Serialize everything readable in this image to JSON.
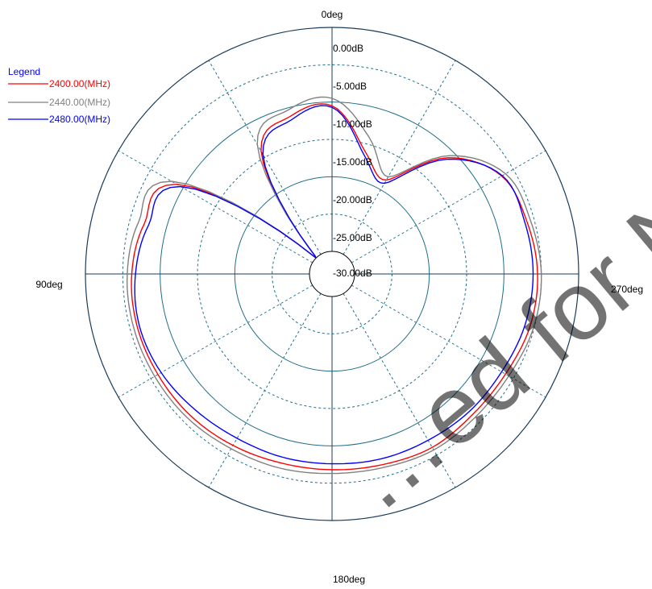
{
  "chart_data": {
    "type": "line",
    "subtype": "polar",
    "title": "",
    "legend": {
      "title": "Legend",
      "placement": "top-left"
    },
    "angle_labels": [
      "0deg",
      "90deg",
      "180deg",
      "270deg"
    ],
    "radial_labels": [
      "0.00dB",
      "-5.00dB",
      "-10.00dB",
      "-15.00dB",
      "-20.00dB",
      "-25.00dB",
      "-30.00dB"
    ],
    "rlim": [
      -35,
      0
    ],
    "angle_direction": "counterclockwise",
    "angle_zero": "top",
    "grid": true,
    "angles_deg": [
      0,
      15,
      30,
      45,
      60,
      75,
      90,
      105,
      120,
      135,
      150,
      165,
      180,
      195,
      210,
      225,
      240,
      255,
      270,
      285,
      300,
      315,
      330,
      345,
      360
    ],
    "series": [
      {
        "name": "2400.00(MHz)",
        "color": "#ff0000",
        "values": [
          -10.5,
          -11.2,
          -14.0,
          -30.0,
          -9.0,
          -7.0,
          -6.2,
          -6.0,
          -6.1,
          -6.2,
          -6.5,
          -6.8,
          -6.8,
          -6.6,
          -6.2,
          -6.4,
          -6.2,
          -5.6,
          -5.5,
          -6.0,
          -6.8,
          -11.0,
          -18.5,
          -16.0,
          -10.5
        ]
      },
      {
        "name": "2440.00(MHz)",
        "color": "#808080",
        "values": [
          -9.5,
          -10.3,
          -13.0,
          -30.0,
          -8.2,
          -6.2,
          -5.6,
          -5.5,
          -5.6,
          -5.7,
          -6.0,
          -6.1,
          -6.3,
          -6.2,
          -5.8,
          -5.9,
          -5.7,
          -5.1,
          -5.0,
          -5.5,
          -6.2,
          -10.6,
          -18.0,
          -14.0,
          -9.5
        ]
      },
      {
        "name": "2480.00(MHz)",
        "color": "#0000ff",
        "values": [
          -10.7,
          -11.7,
          -14.5,
          -30.0,
          -9.6,
          -7.6,
          -6.7,
          -6.3,
          -6.6,
          -7.2,
          -7.6,
          -7.6,
          -7.6,
          -7.4,
          -7.3,
          -7.0,
          -6.8,
          -6.3,
          -6.1,
          -6.3,
          -6.7,
          -11.3,
          -19.0,
          -16.5,
          -10.7
        ]
      }
    ]
  },
  "watermark": "…ed for New"
}
